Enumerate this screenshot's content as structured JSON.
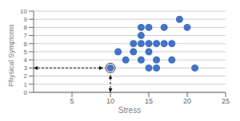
{
  "chart_data": {
    "type": "scatter",
    "x": [
      10,
      11,
      12,
      13,
      13,
      14,
      14,
      14,
      14,
      15,
      15,
      15,
      15,
      16,
      16,
      16,
      17,
      17,
      18,
      18,
      19,
      20,
      21
    ],
    "values": [
      3,
      5,
      4,
      6,
      5,
      8,
      6,
      4,
      7,
      8,
      6,
      5,
      3,
      6,
      4,
      3,
      8,
      6,
      6,
      4,
      9,
      8,
      3
    ],
    "color": "#4472C4",
    "highlight": {
      "x": 10,
      "y": 3
    },
    "xlim": [
      0,
      25
    ],
    "ylim": [
      0,
      10
    ],
    "xticks": [
      5,
      10,
      15,
      20,
      25
    ],
    "yticks": [
      0,
      1,
      2,
      3,
      4,
      5,
      6,
      7,
      8,
      9,
      10
    ],
    "xlabel": "Stress",
    "ylabel": "Physical Symptoms",
    "grid": true
  }
}
